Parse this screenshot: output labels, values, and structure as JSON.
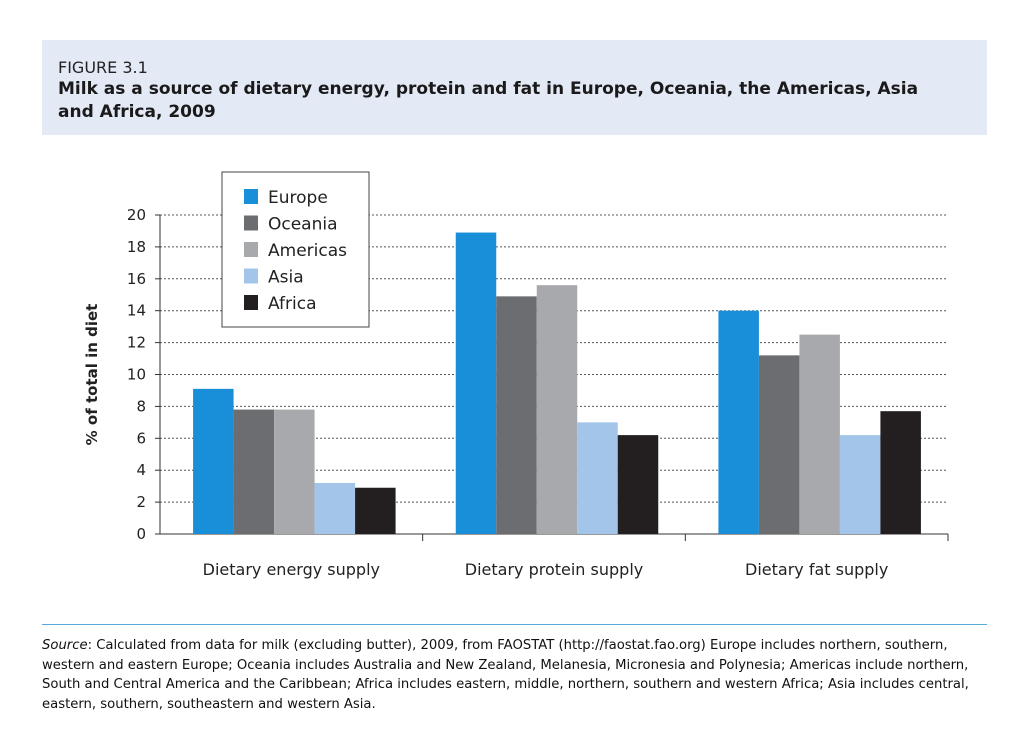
{
  "figure_label": "FIGURE 3.1",
  "title": "Milk as a source of dietary energy, protein and fat in Europe, Oceania, the Americas, Asia and Africa, 2009",
  "source_label": "Source",
  "source_text": ": Calculated from data for milk (excluding butter), 2009, from FAOSTAT (http://faostat.fao.org) Europe includes northern, southern, western and eastern Europe; Oceania includes Australia and New Zealand, Melanesia, Micronesia and Polynesia; Americas include northern, South and Central America and the Caribbean; Africa includes eastern, middle, northern, southern and western Africa; Asia includes central, eastern, southern, southeastern and western Asia.",
  "chart_data": {
    "type": "bar",
    "title": "Milk as a source of dietary energy, protein and fat in Europe, Oceania, the Americas, Asia and Africa, 2009",
    "xlabel": "",
    "ylabel": "% of total in diet",
    "ylim": [
      0,
      20
    ],
    "yticks": [
      "0",
      "2",
      "4",
      "6",
      "8",
      "10",
      "12",
      "14",
      "16",
      "18",
      "20"
    ],
    "grid": true,
    "legend_position": "top-left",
    "categories": [
      "Dietary energy supply",
      "Dietary protein supply",
      "Dietary fat supply"
    ],
    "series": [
      {
        "name": "Europe",
        "color": "#1a8fd9",
        "values": [
          9.1,
          18.9,
          14.0
        ]
      },
      {
        "name": "Oceania",
        "color": "#6b6d70",
        "values": [
          7.8,
          14.9,
          11.2
        ]
      },
      {
        "name": "Americas",
        "color": "#a8a9ac",
        "values": [
          7.8,
          15.6,
          12.5
        ]
      },
      {
        "name": "Asia",
        "color": "#a3c5ea",
        "values": [
          3.2,
          7.0,
          6.2
        ]
      },
      {
        "name": "Africa",
        "color": "#231f20",
        "values": [
          2.9,
          6.2,
          7.7
        ]
      }
    ]
  }
}
